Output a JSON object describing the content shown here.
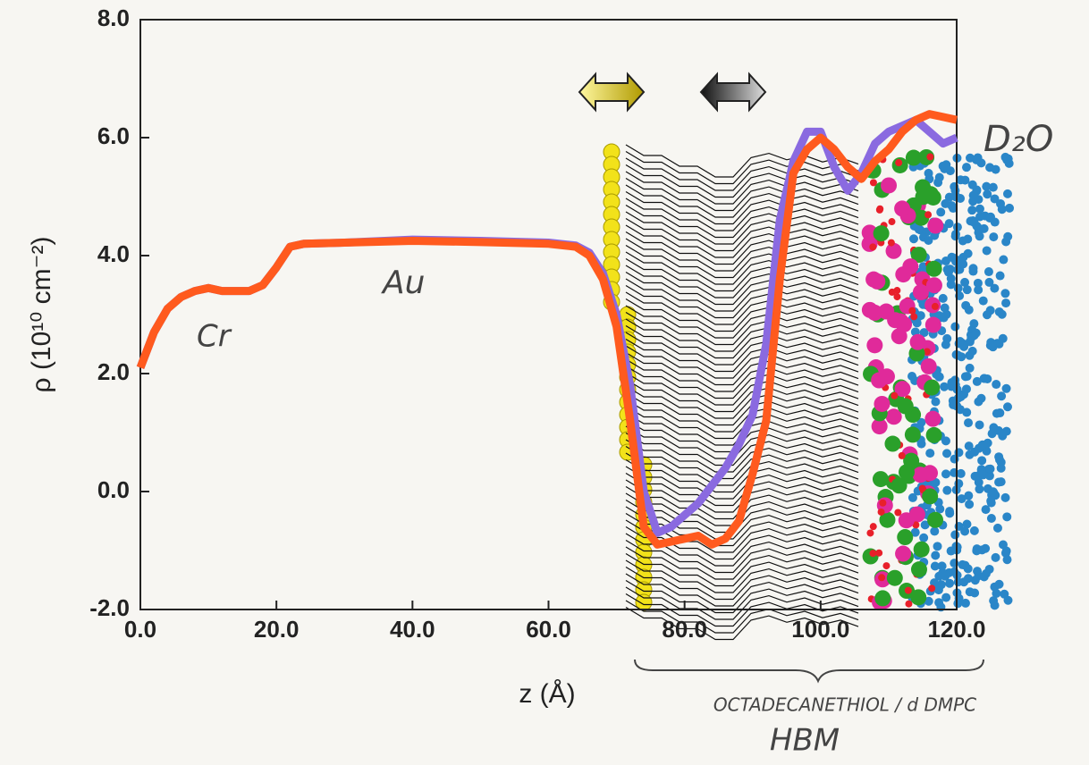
{
  "chart_data": {
    "type": "line",
    "xlabel": "z (Å)",
    "ylabel": "ρ (10¹⁰ cm⁻²)",
    "xlim": [
      0,
      120
    ],
    "ylim": [
      -2,
      8
    ],
    "xticks": [
      {
        "value": 0,
        "label": "0.0"
      },
      {
        "value": 20,
        "label": "20.0"
      },
      {
        "value": 40,
        "label": "40.0"
      },
      {
        "value": 60,
        "label": "60.0"
      },
      {
        "value": 80,
        "label": "80.0"
      },
      {
        "value": 100,
        "label": "100.0"
      },
      {
        "value": 120,
        "label": "120.0"
      }
    ],
    "yticks": [
      {
        "value": -2,
        "label": "-2.0"
      },
      {
        "value": 0,
        "label": "0.0"
      },
      {
        "value": 2,
        "label": "2.0"
      },
      {
        "value": 4,
        "label": "4.0"
      },
      {
        "value": 6,
        "label": "6.0"
      },
      {
        "value": 8,
        "label": "8.0"
      }
    ],
    "x": [
      0,
      2,
      4,
      6,
      8,
      10,
      12,
      16,
      18,
      20,
      22,
      24,
      30,
      40,
      50,
      60,
      64,
      66,
      68,
      70,
      72,
      74,
      76,
      78,
      80,
      82,
      84,
      86,
      88,
      90,
      92,
      94,
      96,
      98,
      100,
      102,
      104,
      106,
      108,
      110,
      112,
      114,
      116,
      118,
      120
    ],
    "series": [
      {
        "color": "#8a6ae0",
        "values": [
          2.1,
          2.7,
          3.1,
          3.3,
          3.4,
          3.45,
          3.4,
          3.4,
          3.5,
          3.8,
          4.15,
          4.2,
          4.22,
          4.27,
          4.25,
          4.22,
          4.17,
          4.05,
          3.7,
          3.0,
          1.8,
          0,
          -0.7,
          -0.6,
          -0.4,
          -0.2,
          0.1,
          0.4,
          0.8,
          1.3,
          2.5,
          4.6,
          5.6,
          6.1,
          6.1,
          5.5,
          5.1,
          5.4,
          5.9,
          6.1,
          6.2,
          6.3,
          6.1,
          5.9,
          6.0
        ]
      },
      {
        "color": "#ff5a1e",
        "values": [
          2.1,
          2.7,
          3.1,
          3.3,
          3.4,
          3.45,
          3.4,
          3.4,
          3.5,
          3.8,
          4.15,
          4.2,
          4.22,
          4.25,
          4.23,
          4.2,
          4.15,
          4.0,
          3.6,
          2.8,
          1.2,
          -0.6,
          -0.9,
          -0.85,
          -0.8,
          -0.75,
          -0.9,
          -0.8,
          -0.5,
          0.3,
          1.2,
          3.6,
          5.4,
          5.8,
          6.0,
          5.8,
          5.5,
          5.3,
          5.6,
          5.8,
          6.1,
          6.3,
          6.4,
          6.35,
          6.3
        ]
      }
    ],
    "annotations": [
      "Cr",
      "Au",
      "D₂O",
      "OCTADECANETHIOL / d DMPC",
      "HBM"
    ]
  }
}
